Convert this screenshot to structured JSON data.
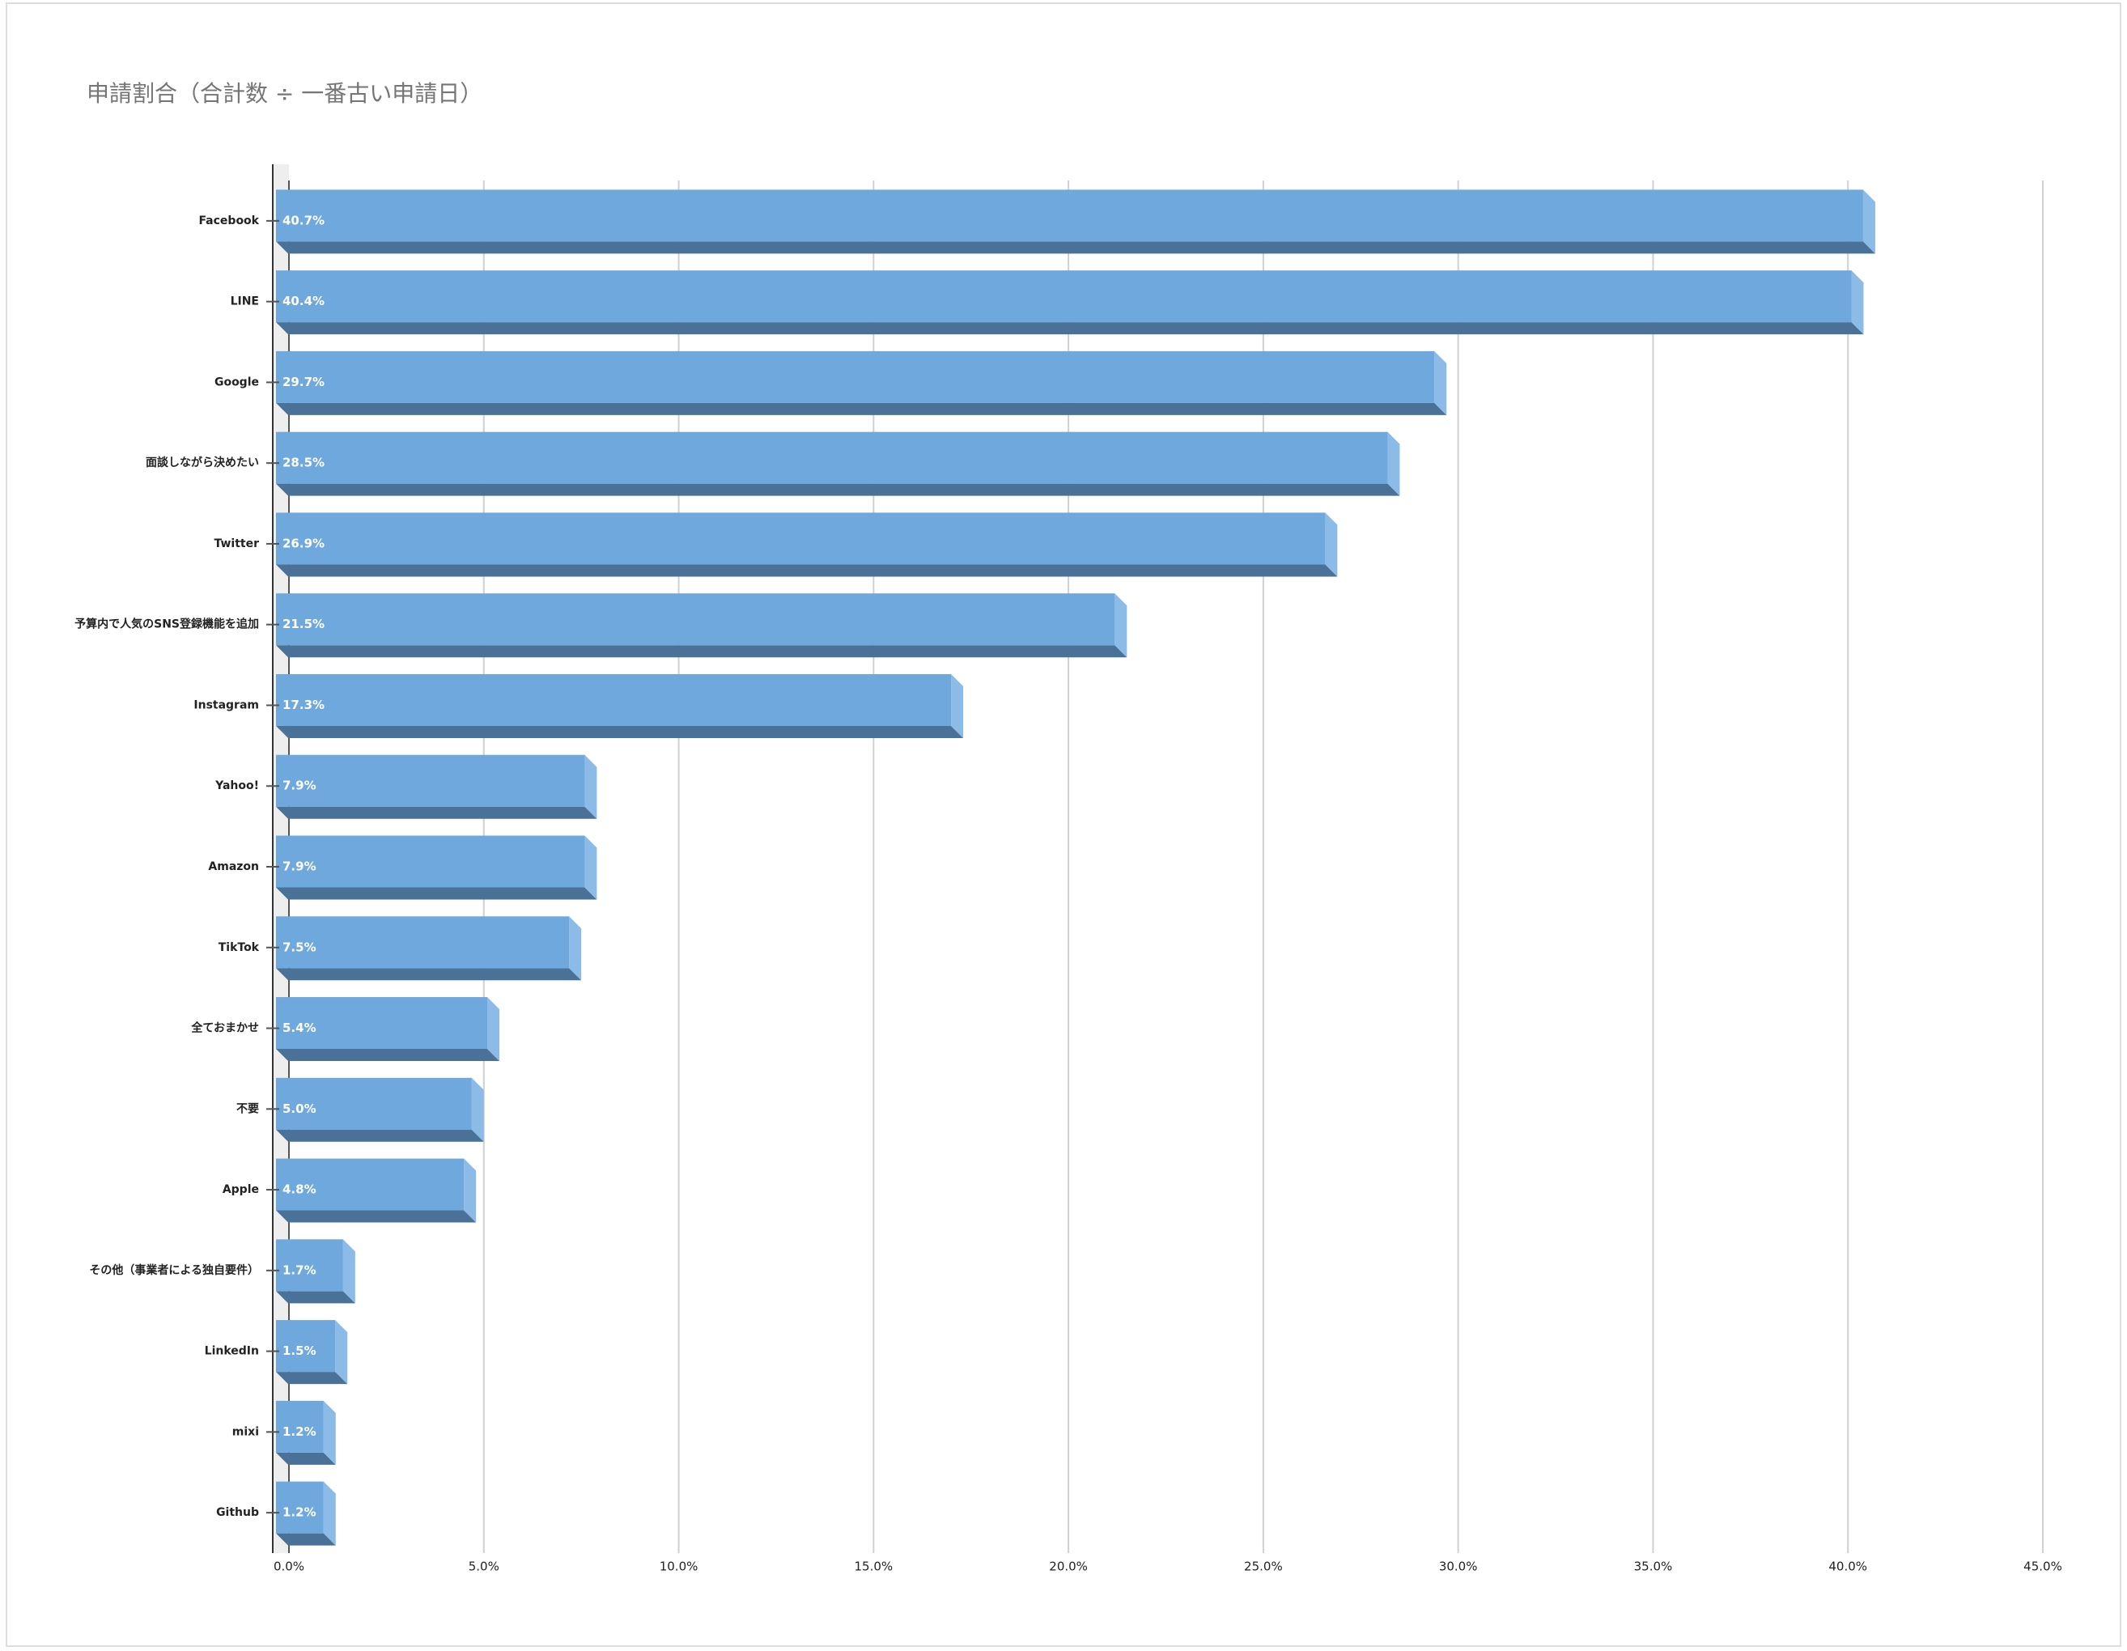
{
  "chart_data": {
    "type": "bar3d",
    "orientation": "horizontal",
    "title": "申請割合（合計数 ÷ 一番古い申請日）",
    "categories": [
      "Facebook",
      "LINE",
      "Google",
      "面談しながら決めたい",
      "Twitter",
      "予算内で人気のSNS登録機能を追加",
      "Instagram",
      "Yahoo!",
      "Amazon",
      "TikTok",
      "全ておまかせ",
      "不要",
      "Apple",
      "その他（事業者による独自要件）",
      "LinkedIn",
      "mixi",
      "Github"
    ],
    "values": [
      40.7,
      40.4,
      29.7,
      28.5,
      26.9,
      21.5,
      17.3,
      7.9,
      7.9,
      7.5,
      5.4,
      5.0,
      4.8,
      1.7,
      1.5,
      1.2,
      1.2
    ],
    "value_labels": [
      "40.7%",
      "40.4%",
      "29.7%",
      "28.5%",
      "26.9%",
      "21.5%",
      "17.3%",
      "7.9%",
      "7.9%",
      "7.5%",
      "5.4%",
      "5.0%",
      "4.8%",
      "1.7%",
      "1.5%",
      "1.2%",
      "1.2%"
    ],
    "color": "#6fa8dc",
    "xlim": [
      0,
      45
    ],
    "xticks": [
      {
        "value": 0,
        "label": "0.0%"
      },
      {
        "value": 5,
        "label": "5.0%"
      },
      {
        "value": 10,
        "label": "10.0%"
      },
      {
        "value": 15,
        "label": "15.0%"
      },
      {
        "value": 20,
        "label": "20.0%"
      },
      {
        "value": 25,
        "label": "25.0%"
      },
      {
        "value": 30,
        "label": "30.0%"
      },
      {
        "value": 35,
        "label": "35.0%"
      },
      {
        "value": 40,
        "label": "40.0%"
      },
      {
        "value": 45,
        "label": "45.0%"
      }
    ],
    "grid": true
  }
}
